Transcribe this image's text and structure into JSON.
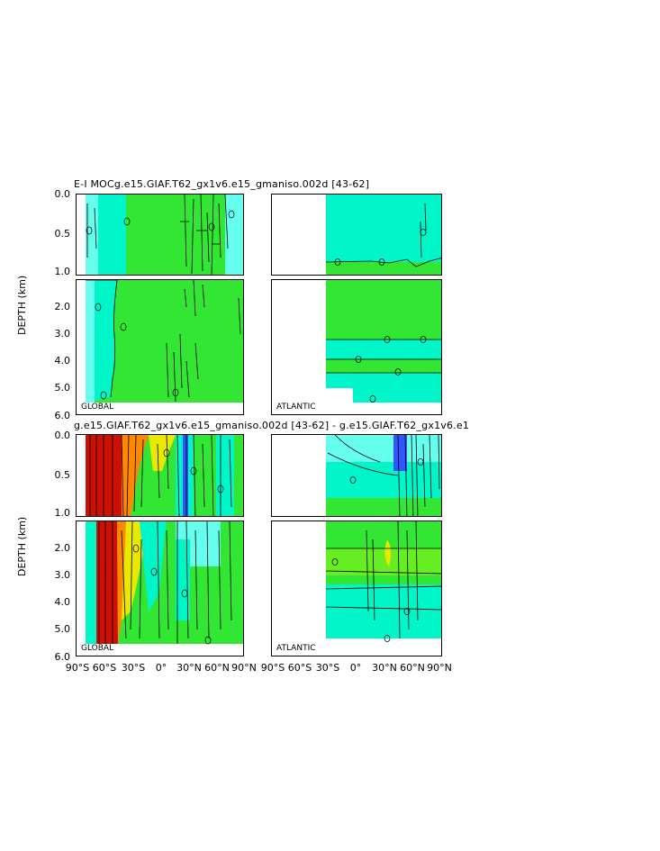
{
  "titles": {
    "top": "E-I MOCg.e15.GIAF.T62_gx1v6.e15_gmaniso.002d [43-62]",
    "bottom": "g.e15.GIAF.T62_gx1v6.e15_gmaniso.002d [43-62] - g.e15.GIAF.T62_gx1v6.e1"
  },
  "regions": {
    "global": "GLOBAL",
    "atlantic": "ATLANTIC"
  },
  "axis": {
    "ylabel": "DEPTH (km)"
  },
  "chart_data": [
    {
      "type": "contour",
      "name_ref": "top",
      "ylabel": "DEPTH (km)",
      "y_upper_ticks": [
        "0.0",
        "0.5",
        "1.0"
      ],
      "y_lower_ticks": [
        "2.0",
        "3.0",
        "4.0",
        "5.0",
        "6.0"
      ],
      "ylim_upper": [
        0,
        1.0
      ],
      "ylim_lower": [
        1.0,
        6.0
      ],
      "xlim": [
        -90,
        90
      ],
      "panels": [
        "GLOBAL",
        "ATLANTIC"
      ],
      "contour_labels": [
        "0"
      ]
    },
    {
      "type": "contour",
      "name_ref": "bottom",
      "ylabel": "DEPTH (km)",
      "y_upper_ticks": [
        "0.0",
        "0.5",
        "1.0"
      ],
      "y_lower_ticks": [
        "2.0",
        "3.0",
        "4.0",
        "5.0",
        "6.0"
      ],
      "ylim_upper": [
        0,
        1.0
      ],
      "ylim_lower": [
        1.0,
        6.0
      ],
      "xlim": [
        -90,
        90
      ],
      "x_ticks_global": [
        "90°S",
        "60°S",
        "30°S",
        "0°",
        "30°N",
        "60°N",
        "90°N"
      ],
      "x_ticks_atlantic": [
        "90°S",
        "60°S",
        "30°S",
        "0°",
        "30°N",
        "60°N",
        "90°N"
      ],
      "panels": [
        "GLOBAL",
        "ATLANTIC"
      ],
      "contour_labels": [
        "0"
      ]
    }
  ],
  "colors": {
    "green": "#33e633",
    "cyan": "#00f5c8",
    "light_cyan": "#66ffee",
    "blue": "#3355ff",
    "red": "#cc1100",
    "yellow": "#e8e800",
    "orange": "#ff8800"
  }
}
